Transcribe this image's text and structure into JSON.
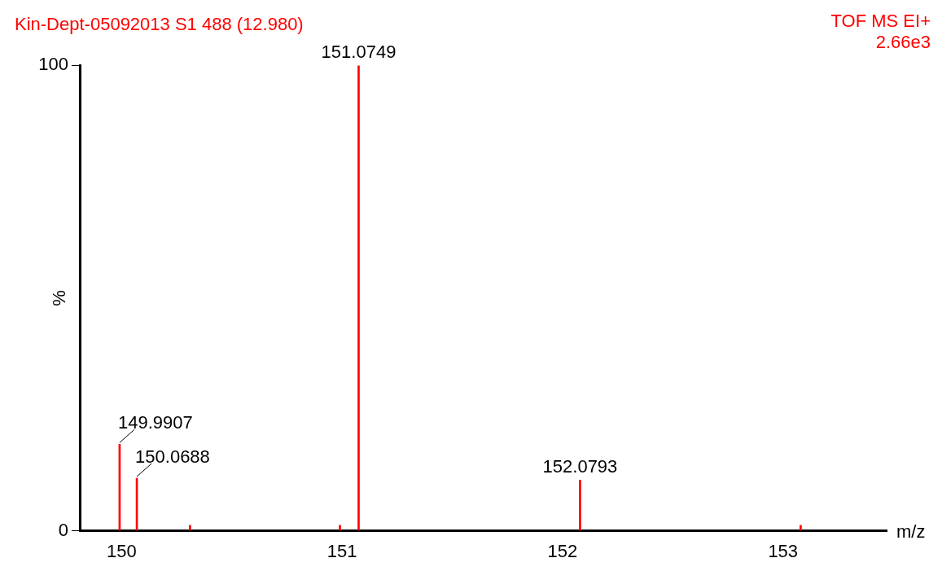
{
  "chart_data": {
    "type": "bar",
    "title": "Kin-Dept-05092013 S1 488 (12.980)",
    "xlabel": "m/z",
    "ylabel": "%",
    "annotations": [
      "TOF MS EI+",
      "2.66e3",
      {
        "text": "149.9907",
        "x": 149.9907,
        "y": 18.6
      },
      {
        "text": "150.0688",
        "x": 150.0688,
        "y": 11.3
      },
      {
        "text": "151.0749",
        "x": 151.0749,
        "y": 100
      },
      {
        "text": "152.0793",
        "x": 152.0793,
        "y": 10.9
      }
    ],
    "x": [
      149.9907,
      150.0688,
      150.31,
      150.99,
      151.0749,
      152.0793,
      153.08
    ],
    "values": [
      18.6,
      11.3,
      1.2,
      1.2,
      100,
      10.9,
      1.2
    ],
    "color": "#ff0000",
    "xlim": [
      149.81,
      153.47
    ],
    "xticks": [
      150,
      151,
      152,
      153
    ],
    "ylim": [
      0,
      100
    ],
    "yticks": [
      0,
      100
    ],
    "grid": false,
    "legend": false
  }
}
